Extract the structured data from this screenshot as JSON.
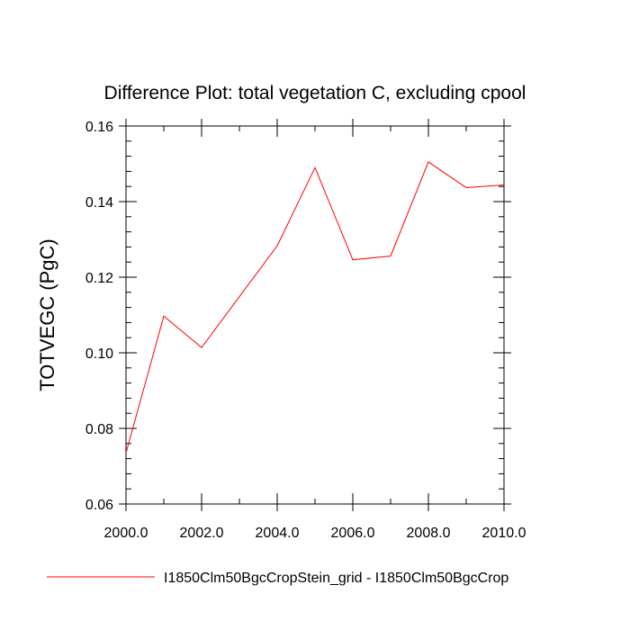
{
  "chart_data": {
    "type": "line",
    "title": "Difference Plot: total vegetation C, excluding cpool",
    "xlabel": "",
    "ylabel": "TOTVEGC  (PgC)",
    "x": [
      2000,
      2001,
      2002,
      2004,
      2005,
      2006,
      2007,
      2008,
      2009,
      2010
    ],
    "series": [
      {
        "name": "I1850Clm50BgcCropStein_grid - I1850Clm50BgcCrop",
        "color": "#ff0000",
        "values": [
          0.0735,
          0.1097,
          0.1014,
          0.1283,
          0.149,
          0.1246,
          0.1256,
          0.1505,
          0.1437,
          0.1444
        ]
      }
    ],
    "xlim": [
      2000,
      2010
    ],
    "ylim": [
      0.06,
      0.16
    ],
    "xticks": [
      2000,
      2002,
      2004,
      2006,
      2008,
      2010
    ],
    "xtick_labels": [
      "2000.0",
      "2002.0",
      "2004.0",
      "2006.0",
      "2008.0",
      "2010.0"
    ],
    "yticks": [
      0.06,
      0.08,
      0.1,
      0.12,
      0.14,
      0.16
    ],
    "ytick_labels": [
      "0.06",
      "0.08",
      "0.10",
      "0.12",
      "0.14",
      "0.16"
    ],
    "grid": false,
    "legend_position": "bottom"
  }
}
